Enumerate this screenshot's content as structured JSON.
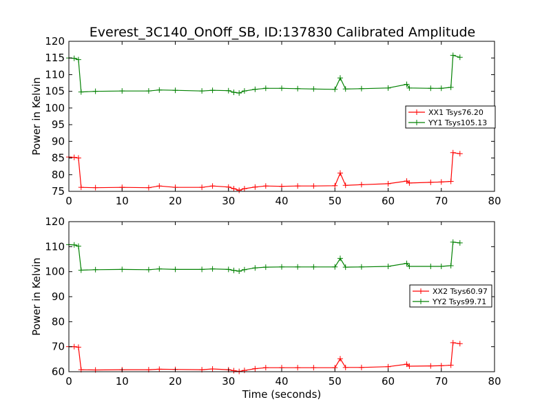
{
  "title": "Everest_3C140_OnOff_SB, ID:137830 Calibrated Amplitude",
  "chart_data": [
    {
      "type": "line",
      "ylabel": "Power in Kelvin",
      "xlabel": "",
      "xlim": [
        0,
        80
      ],
      "ylim": [
        75,
        120
      ],
      "xticks": [
        0,
        10,
        20,
        30,
        40,
        50,
        60,
        70,
        80
      ],
      "yticks": [
        75,
        80,
        85,
        90,
        95,
        100,
        105,
        110,
        115,
        120
      ],
      "legend_position": "right",
      "series": [
        {
          "name": "XX1 Tsys76.20",
          "color": "#ff0000",
          "x": [
            0,
            1,
            1.8,
            2.3,
            5,
            10,
            15,
            17,
            20,
            25,
            27,
            30,
            31,
            32,
            33,
            35,
            37,
            40,
            43,
            46,
            50,
            51,
            52,
            55,
            60,
            63.5,
            64,
            68,
            70,
            71.8,
            72.2,
            73.5
          ],
          "y": [
            85.3,
            85.2,
            85,
            76.2,
            76.1,
            76.2,
            76.1,
            76.6,
            76.2,
            76.2,
            76.6,
            76.3,
            75.8,
            75.3,
            75.8,
            76.3,
            76.6,
            76.5,
            76.6,
            76.6,
            76.7,
            80.5,
            76.8,
            77,
            77.3,
            78.1,
            77.5,
            77.7,
            77.8,
            78,
            86.6,
            86.3
          ]
        },
        {
          "name": "YY1 Tsys105.13",
          "color": "#008000",
          "x": [
            0,
            1,
            1.8,
            2.3,
            5,
            10,
            15,
            17,
            20,
            25,
            27,
            30,
            31,
            32,
            33,
            35,
            37,
            40,
            43,
            46,
            50,
            51,
            52,
            55,
            60,
            63.5,
            64,
            68,
            70,
            71.8,
            72.2,
            73.5
          ],
          "y": [
            115,
            114.9,
            114.5,
            104.8,
            105,
            105.1,
            105.1,
            105.4,
            105.3,
            105.1,
            105.3,
            105.2,
            104.7,
            104.5,
            105.1,
            105.6,
            105.9,
            105.9,
            105.8,
            105.7,
            105.6,
            109,
            105.7,
            105.8,
            106,
            107.1,
            106,
            105.9,
            105.9,
            106.2,
            115.8,
            115.2
          ]
        }
      ]
    },
    {
      "type": "line",
      "ylabel": "Power in Kelvin",
      "xlabel": "Time (seconds)",
      "xlim": [
        0,
        80
      ],
      "ylim": [
        60,
        120
      ],
      "xticks": [
        0,
        10,
        20,
        30,
        40,
        50,
        60,
        70,
        80
      ],
      "yticks": [
        60,
        70,
        80,
        90,
        100,
        110,
        120
      ],
      "legend_position": "right",
      "series": [
        {
          "name": "XX2 Tsys60.97",
          "color": "#ff0000",
          "x": [
            0,
            1,
            1.8,
            2.3,
            5,
            10,
            15,
            17,
            20,
            25,
            27,
            30,
            31,
            32,
            33,
            35,
            37,
            40,
            43,
            46,
            50,
            51,
            52,
            55,
            60,
            63.5,
            64,
            68,
            70,
            71.8,
            72.2,
            73.5
          ],
          "y": [
            70,
            70,
            69.8,
            60.8,
            60.7,
            60.8,
            60.8,
            61,
            60.9,
            60.8,
            61.1,
            60.8,
            60.4,
            60.1,
            60.5,
            61.2,
            61.6,
            61.6,
            61.6,
            61.6,
            61.6,
            65.2,
            61.7,
            61.7,
            62,
            63,
            62.2,
            62.3,
            62.4,
            62.6,
            71.6,
            71.2
          ]
        },
        {
          "name": "YY2 Tsys99.71",
          "color": "#008000",
          "x": [
            0,
            1,
            1.8,
            2.3,
            5,
            10,
            15,
            17,
            20,
            25,
            27,
            30,
            31,
            32,
            33,
            35,
            37,
            40,
            43,
            46,
            50,
            51,
            52,
            55,
            60,
            63.5,
            64,
            68,
            70,
            71.8,
            72.2,
            73.5
          ],
          "y": [
            110.8,
            110.7,
            110.2,
            100.6,
            100.8,
            100.9,
            100.8,
            101.1,
            100.9,
            100.9,
            101.1,
            100.9,
            100.5,
            100.2,
            100.8,
            101.5,
            101.8,
            101.9,
            101.9,
            101.9,
            101.9,
            105.3,
            101.8,
            101.9,
            102.1,
            103.3,
            102.1,
            102.1,
            102.1,
            102.4,
            111.8,
            111.5
          ]
        }
      ]
    }
  ]
}
